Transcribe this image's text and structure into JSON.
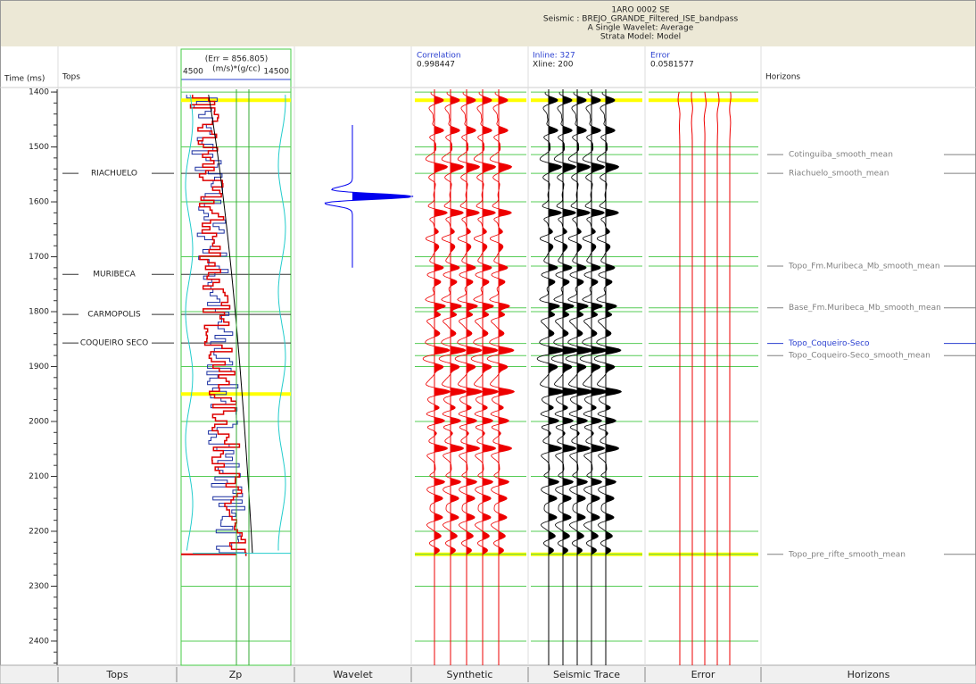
{
  "header": {
    "lines": [
      "1ARO 0002 SE",
      "Seismic : BREJO_GRANDE_Filtered_ISE_bandpass",
      "A Single Wavelet: Average",
      "Strata Model: Model"
    ]
  },
  "time_axis": {
    "label": "Time (ms)",
    "lim": [
      1395,
      2444
    ],
    "ticks": [
      1400,
      1500,
      1600,
      1700,
      1800,
      1900,
      2000,
      2100,
      2200,
      2300,
      2400
    ]
  },
  "tops": {
    "title": "Tops",
    "items": [
      {
        "name": "RIACHUELO",
        "time": 1548
      },
      {
        "name": "MURIBECA",
        "time": 1732
      },
      {
        "name": "CARMOPOLIS",
        "time": 1805
      },
      {
        "name": "COQUEIRO SECO",
        "time": 1857
      }
    ]
  },
  "zp": {
    "error": "(Err = 856.805)",
    "unit": "(m/s)*(g/cc)",
    "xlim": [
      4500,
      14500
    ]
  },
  "synthetic": {
    "label": "Correlation",
    "value": 0.998447
  },
  "seismic": {
    "inline": "Inline: 327",
    "xline": "Xline: 200"
  },
  "error": {
    "label": "Error",
    "value": 0.0581577
  },
  "horizons": {
    "title": "Horizons",
    "items": [
      {
        "name": "Cotinguiba_smooth_mean",
        "time": 1514,
        "color": "#808080"
      },
      {
        "name": "Riachuelo_smooth_mean",
        "time": 1548,
        "color": "#808080"
      },
      {
        "name": "Topo_Fm.Muribeca_Mb_smooth_mean",
        "time": 1717,
        "color": "#808080"
      },
      {
        "name": "Base_Fm.Muribeca_Mb_smooth_mean",
        "time": 1793,
        "color": "#808080"
      },
      {
        "name": "Topo_Coqueiro-Seco",
        "time": 1858,
        "color": "#2a3fd0"
      },
      {
        "name": "Topo_Coqueiro-Seco_smooth_mean",
        "time": 1880,
        "color": "#808080"
      },
      {
        "name": "Topo_pre_rifte_smooth_mean",
        "time": 2242,
        "color": "#808080"
      }
    ]
  },
  "tabs": [
    "Tops",
    "Zp",
    "Wavelet",
    "Synthetic",
    "Seismic Trace",
    "Error",
    "Horizons"
  ]
}
